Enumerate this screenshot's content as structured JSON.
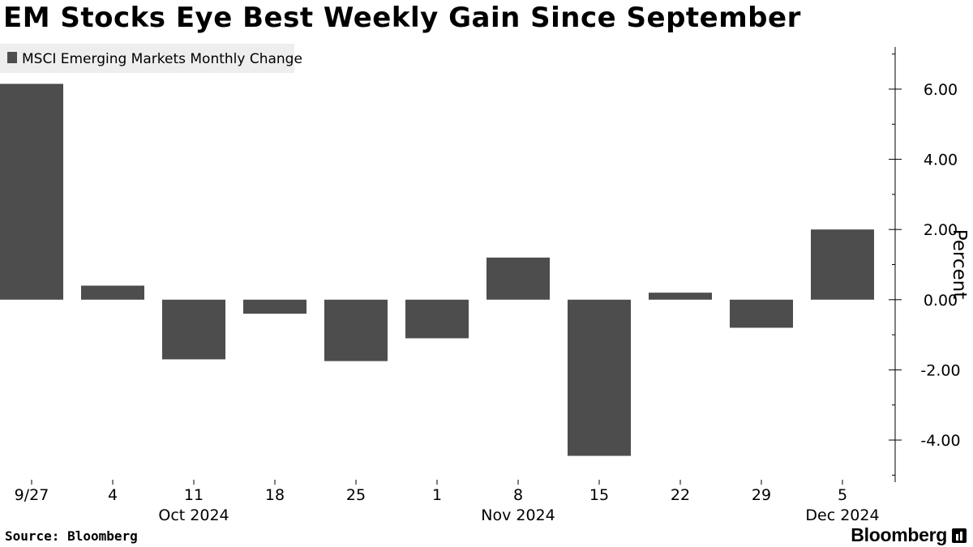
{
  "title": "EM Stocks Eye Best Weekly Gain Since September",
  "source": "Source: Bloomberg",
  "brand": "Bloomberg",
  "colors": {
    "bar": "#4d4d4d",
    "legend_bg": "#eeeeee",
    "axis": "#000000"
  },
  "chart_data": {
    "type": "bar",
    "legend": [
      "MSCI Emerging Markets Monthly Change"
    ],
    "legend_placement": "top-left",
    "categories": [
      "9/27",
      "4",
      "11",
      "18",
      "25",
      "1",
      "8",
      "15",
      "22",
      "29",
      "5"
    ],
    "month_labels": [
      {
        "label": "Oct 2024",
        "under": "11"
      },
      {
        "label": "Nov 2024",
        "under": "8"
      },
      {
        "label": "Dec 2024",
        "under": "5"
      }
    ],
    "series": [
      {
        "name": "MSCI Emerging Markets Monthly Change",
        "values": [
          6.15,
          0.4,
          -1.7,
          -0.4,
          -1.75,
          -1.1,
          1.2,
          -4.45,
          0.2,
          -0.8,
          2.0
        ]
      }
    ],
    "ylabel": "Percent",
    "yaxis_side": "right",
    "ylim": [
      -5.2,
      7.2
    ],
    "yticks": [
      6,
      4,
      2,
      0,
      -2,
      -4
    ],
    "ytick_labels": [
      "6.00",
      "4.00",
      "2.00",
      "0.00",
      "-2.00",
      "-4.00"
    ],
    "grid": false
  }
}
